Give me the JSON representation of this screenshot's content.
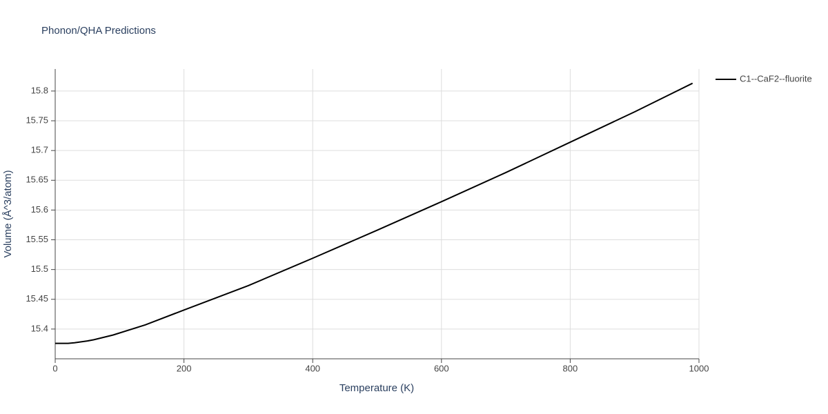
{
  "chart_data": {
    "type": "line",
    "title": "Phonon/QHA Predictions",
    "x_label": "Temperature (K)",
    "y_label": "Volume (Å^3/atom)",
    "series": [
      {
        "name": "C1--CaF2--fluorite",
        "color": "#000000",
        "x": [
          0,
          20,
          30,
          50,
          60,
          90,
          140,
          200,
          300,
          400,
          500,
          600,
          700,
          800,
          900,
          990
        ],
        "values": [
          15.376,
          15.376,
          15.377,
          15.38,
          15.382,
          15.39,
          15.407,
          15.432,
          15.473,
          15.519,
          15.566,
          15.614,
          15.663,
          15.714,
          15.765,
          15.813
        ]
      }
    ],
    "xlim": [
      0,
      1000
    ],
    "xticks": [
      0,
      200,
      400,
      600,
      800,
      1000
    ],
    "ylim": [
      15.35,
      15.837
    ],
    "yticks": [
      15.4,
      15.45,
      15.5,
      15.55,
      15.6,
      15.65,
      15.7,
      15.75,
      15.8
    ],
    "grid": true,
    "legend": "right"
  }
}
